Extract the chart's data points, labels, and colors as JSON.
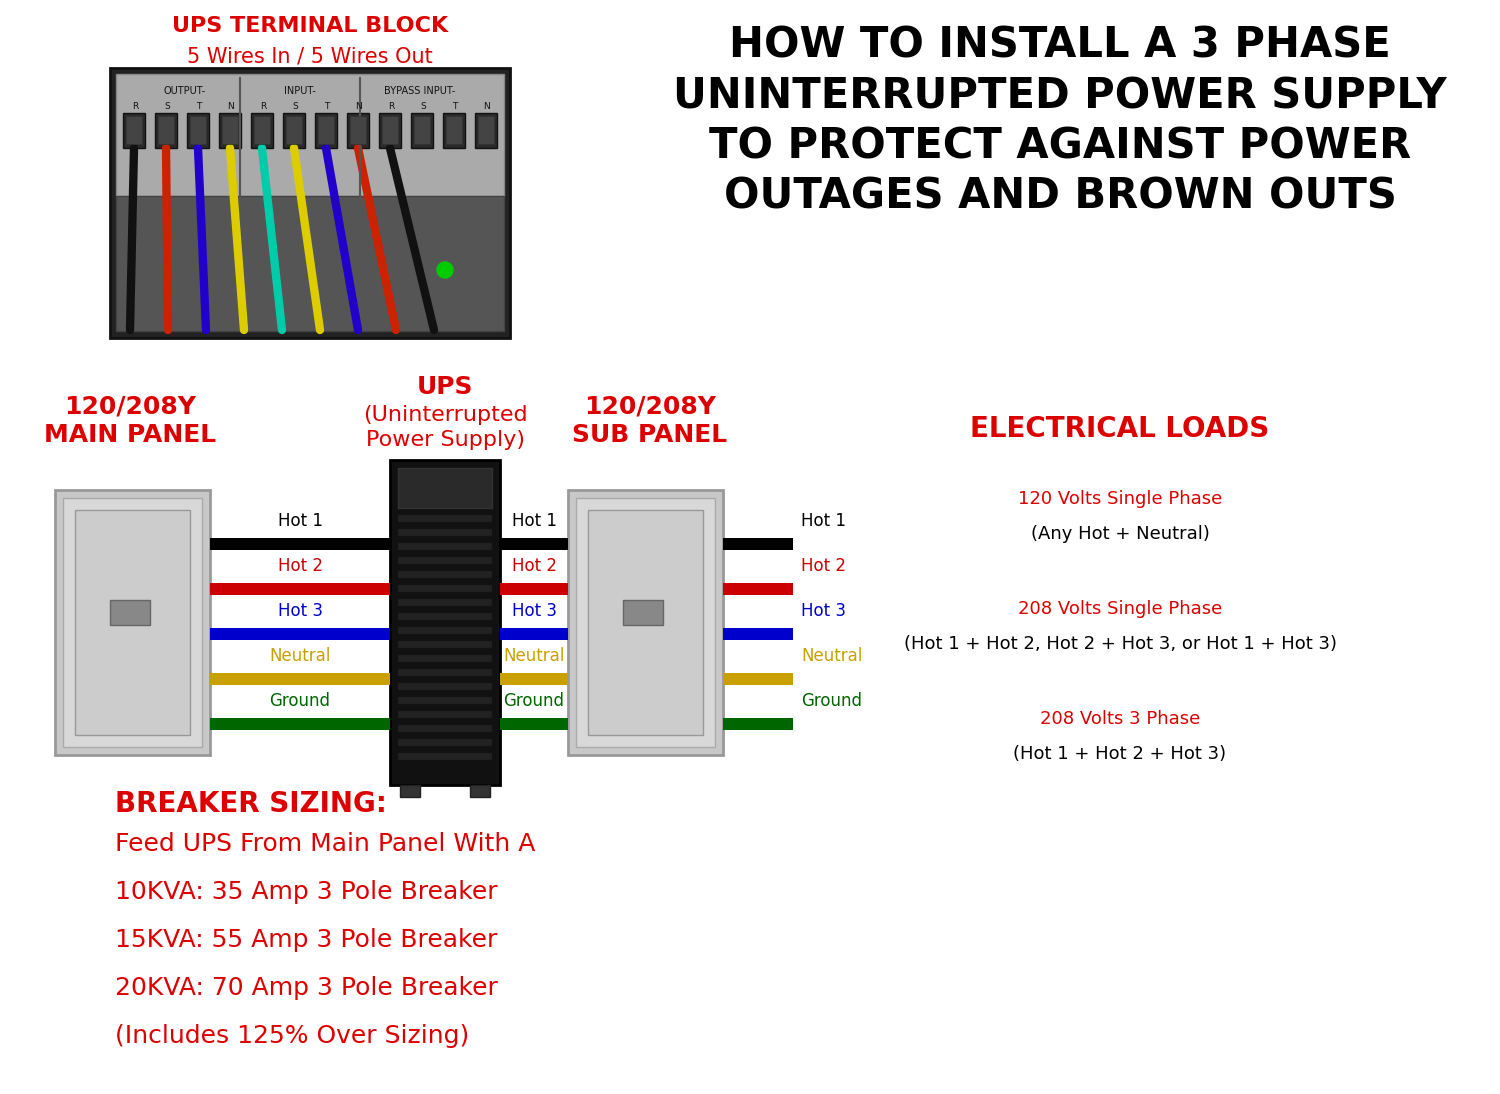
{
  "bg_color": "#ffffff",
  "title_text": "HOW TO INSTALL A 3 PHASE\nUNINTERRUPTED POWER SUPPLY\nTO PROTECT AGAINST POWER\nOUTAGES AND BROWN OUTS",
  "title_color": "#000000",
  "title_fontsize": 30,
  "terminal_label": "UPS TERMINAL BLOCK",
  "terminal_label2": "5 Wires In / 5 Wires Out",
  "terminal_color": "#dd0000",
  "ups_label": "UPS",
  "ups_label2": "(Uninterrupted\nPower Supply)",
  "main_panel_label": "120/208Y\nMAIN PANEL",
  "sub_panel_label": "120/208Y\nSUB PANEL",
  "elec_loads_label": "ELECTRICAL LOADS",
  "elec_loads_color": "#dd0000",
  "panel_label_color": "#dd0000",
  "ups_label_color": "#dd0000",
  "wire_labels": [
    "Hot 1",
    "Hot 2",
    "Hot 3",
    "Neutral",
    "Ground"
  ],
  "wire_colors": [
    "#000000",
    "#cc0000",
    "#0000cc",
    "#c8a000",
    "#006600"
  ],
  "wire_text_colors": [
    "#000000",
    "#cc0000",
    "#0000cc",
    "#c8a000",
    "#006600"
  ],
  "elec_load_texts": [
    "120 Volts Single Phase",
    "(Any Hot + Neutral)",
    "208 Volts Single Phase",
    "(Hot 1 + Hot 2, Hot 2 + Hot 3, or Hot 1 + Hot 3)",
    "208 Volts 3 Phase",
    "(Hot 1 + Hot 2 + Hot 3)"
  ],
  "elec_load_colors": [
    "#dd0000",
    "#000000",
    "#dd0000",
    "#000000",
    "#dd0000",
    "#000000"
  ],
  "elec_load_fontsizes": [
    13,
    13,
    13,
    13,
    13,
    13
  ],
  "breaker_title": "BREAKER SIZING:",
  "breaker_lines": [
    "Feed UPS From Main Panel With A",
    "10KVA: 35 Amp 3 Pole Breaker",
    "15KVA: 55 Amp 3 Pole Breaker",
    "20KVA: 70 Amp 3 Pole Breaker",
    "(Includes 125% Over Sizing)"
  ],
  "breaker_color": "#dd0000",
  "fig_width": 15.0,
  "fig_height": 10.94
}
